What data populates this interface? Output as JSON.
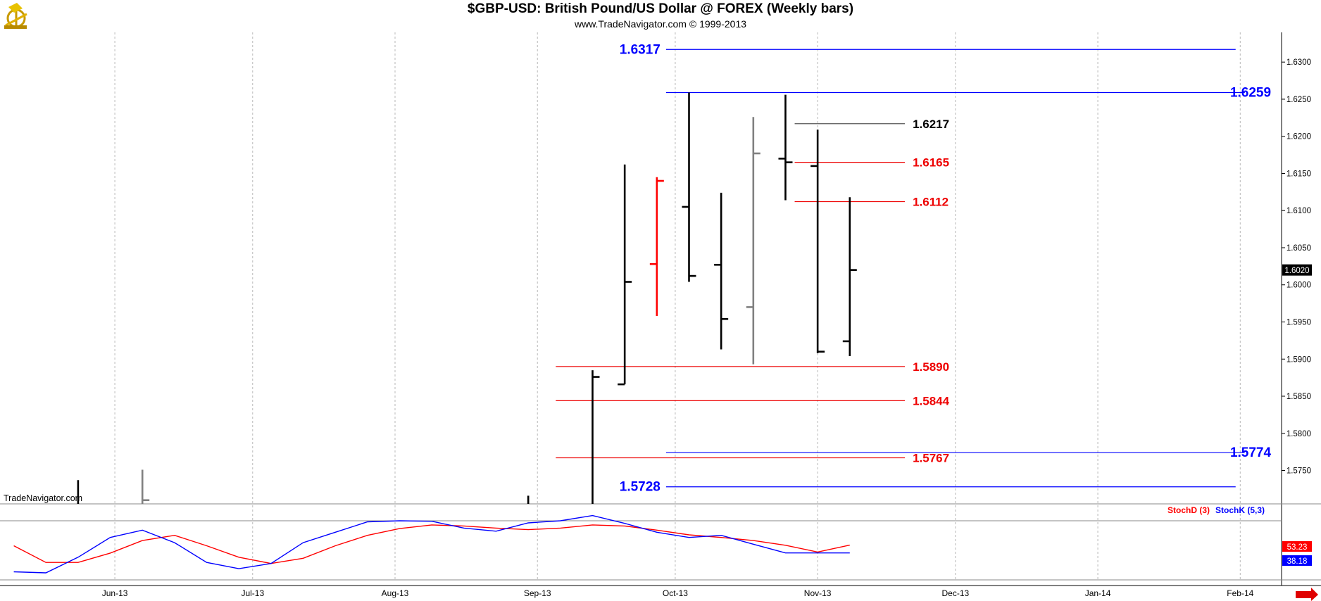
{
  "header": {
    "title": "$GBP-USD:  British Pound/US Dollar @ FOREX  (Weekly bars)",
    "subtitle": "www.TradeNavigator.com © 1999-2013",
    "logo_icon": "trade-navigator-sextant-logo"
  },
  "watermark": "TradeNavigator.com",
  "colors": {
    "bar_black": "#000000",
    "bar_gray": "#808080",
    "bar_red": "#ff0000",
    "level_blue": "#0000ff",
    "level_red": "#ee0000",
    "level_gray": "#555555",
    "stoch_d": "#ff0000",
    "stoch_k": "#0000ff",
    "grid": "#b8b8b8",
    "price_tag_bg": "#000000"
  },
  "chart_data": [
    {
      "type": "ohlc",
      "title": "$GBP-USD:  British Pound/US Dollar @ FOREX  (Weekly bars)",
      "ylim": [
        1.5705,
        1.634
      ],
      "y_ticks": [
        "1.5750",
        "1.5800",
        "1.5850",
        "1.5900",
        "1.5950",
        "1.6000",
        "1.6050",
        "1.6100",
        "1.6150",
        "1.6200",
        "1.6250",
        "1.6300"
      ],
      "x_ticks": [
        {
          "label": "Jun-13",
          "date": "2013-06-01"
        },
        {
          "label": "Jul-13",
          "date": "2013-07-01"
        },
        {
          "label": "Aug-13",
          "date": "2013-08-01"
        },
        {
          "label": "Sep-13",
          "date": "2013-09-01"
        },
        {
          "label": "Oct-13",
          "date": "2013-10-01"
        },
        {
          "label": "Nov-13",
          "date": "2013-11-01"
        },
        {
          "label": "Dec-13",
          "date": "2013-12-01"
        },
        {
          "label": "Jan-14",
          "date": "2014-01-01"
        },
        {
          "label": "Feb-14",
          "date": "2014-02-01"
        }
      ],
      "x_range": [
        "2013-05-07",
        "2014-02-10"
      ],
      "last_price": "1.6020",
      "last_price_value": 1.602,
      "bars": [
        {
          "date": "2013-05-24",
          "open": 1.5705,
          "high": 1.5737,
          "low": 1.5705,
          "close": 1.5705,
          "color": "black"
        },
        {
          "date": "2013-06-07",
          "open": 1.5705,
          "high": 1.5751,
          "low": 1.5705,
          "close": 1.571,
          "color": "gray"
        },
        {
          "date": "2013-08-30",
          "open": 1.5705,
          "high": 1.5716,
          "low": 1.5705,
          "close": 1.5705,
          "color": "black"
        },
        {
          "date": "2013-09-13",
          "open": 1.5705,
          "high": 1.5885,
          "low": 1.5705,
          "close": 1.5876,
          "color": "black"
        },
        {
          "date": "2013-09-20",
          "open": 1.5866,
          "high": 1.6162,
          "low": 1.5866,
          "close": 1.6004,
          "color": "black"
        },
        {
          "date": "2013-09-27",
          "open": 1.6028,
          "high": 1.6145,
          "low": 1.5958,
          "close": 1.614,
          "color": "red"
        },
        {
          "date": "2013-10-04",
          "open": 1.6105,
          "high": 1.6259,
          "low": 1.6004,
          "close": 1.6012,
          "color": "black"
        },
        {
          "date": "2013-10-11",
          "open": 1.6027,
          "high": 1.6124,
          "low": 1.5913,
          "close": 1.5954,
          "color": "black"
        },
        {
          "date": "2013-10-18",
          "open": 1.597,
          "high": 1.6226,
          "low": 1.5893,
          "close": 1.6177,
          "color": "gray"
        },
        {
          "date": "2013-10-25",
          "open": 1.617,
          "high": 1.6256,
          "low": 1.6114,
          "close": 1.6165,
          "color": "black"
        },
        {
          "date": "2013-11-01",
          "open": 1.616,
          "high": 1.6209,
          "low": 1.5908,
          "close": 1.591,
          "color": "black"
        },
        {
          "date": "2013-11-08",
          "open": 1.5924,
          "high": 1.6118,
          "low": 1.5904,
          "close": 1.602,
          "color": "black"
        }
      ],
      "levels": [
        {
          "value": 1.6317,
          "label": "1.6317",
          "color": "blue",
          "from": "2013-09-29",
          "to": "2014-01-31",
          "label_side": "left"
        },
        {
          "value": 1.6259,
          "label": "1.6259",
          "color": "blue",
          "from": "2013-09-29",
          "to": "2014-02-02",
          "label_side": "right"
        },
        {
          "value": 1.6217,
          "label": "1.6217",
          "color": "gray",
          "from": "2013-10-27",
          "to": "2013-11-20",
          "label_side": "right-near"
        },
        {
          "value": 1.6165,
          "label": "1.6165",
          "color": "red",
          "from": "2013-10-27",
          "to": "2013-11-20",
          "label_side": "right-near"
        },
        {
          "value": 1.6112,
          "label": "1.6112",
          "color": "red",
          "from": "2013-10-27",
          "to": "2013-11-20",
          "label_side": "right-near"
        },
        {
          "value": 1.589,
          "label": "1.5890",
          "color": "red",
          "from": "2013-09-05",
          "to": "2013-11-20",
          "label_side": "right-near"
        },
        {
          "value": 1.5844,
          "label": "1.5844",
          "color": "red",
          "from": "2013-09-05",
          "to": "2013-11-20",
          "label_side": "right-near"
        },
        {
          "value": 1.5767,
          "label": "1.5767",
          "color": "red",
          "from": "2013-09-05",
          "to": "2013-11-20",
          "label_side": "right-near"
        },
        {
          "value": 1.5774,
          "label": "1.5774",
          "color": "blue",
          "from": "2013-09-29",
          "to": "2014-02-02",
          "label_side": "right"
        },
        {
          "value": 1.5728,
          "label": "1.5728",
          "color": "blue",
          "from": "2013-09-29",
          "to": "2014-01-31",
          "label_side": "left"
        }
      ]
    },
    {
      "type": "line",
      "title": "",
      "legend": [
        "StochD (3)",
        "StochK (5,3)"
      ],
      "ylim": [
        0,
        100
      ],
      "dates": [
        "2013-05-10",
        "2013-05-17",
        "2013-05-24",
        "2013-05-31",
        "2013-06-07",
        "2013-06-14",
        "2013-06-21",
        "2013-06-28",
        "2013-07-05",
        "2013-07-12",
        "2013-07-19",
        "2013-07-26",
        "2013-08-02",
        "2013-08-09",
        "2013-08-16",
        "2013-08-23",
        "2013-08-30",
        "2013-09-06",
        "2013-09-13",
        "2013-09-20",
        "2013-09-27",
        "2013-10-04",
        "2013-10-11",
        "2013-10-18",
        "2013-10-25",
        "2013-11-01",
        "2013-11-08"
      ],
      "series": [
        {
          "name": "StochD (3)",
          "color": "red",
          "values": [
            52,
            20,
            20,
            38,
            62,
            72,
            52,
            30,
            18,
            28,
            52,
            72,
            85,
            92,
            90,
            86,
            83,
            86,
            92,
            90,
            82,
            73,
            68,
            62,
            53,
            40,
            53.23
          ]
        },
        {
          "name": "StochK (5,3)",
          "color": "blue",
          "values": [
            2,
            0,
            30,
            68,
            82,
            58,
            20,
            8,
            18,
            58,
            78,
            98,
            100,
            99,
            86,
            80,
            96,
            100,
            110,
            95,
            78,
            68,
            72,
            55,
            38.18,
            38.18,
            38.18
          ]
        }
      ],
      "last_values": [
        "53.23",
        "38.18"
      ]
    }
  ]
}
